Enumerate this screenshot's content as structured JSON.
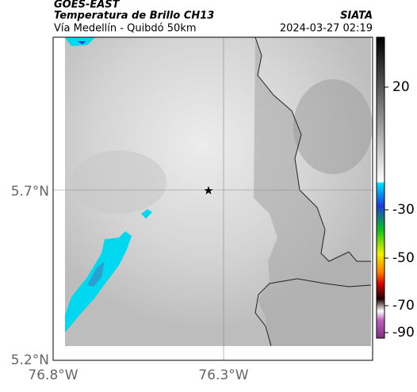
{
  "header": {
    "source": "GOES-EAST",
    "title": "Temperatura de Brillo CH13",
    "subtitle": "Vía Medellín - Quibdó 50km",
    "agency": "SIATA",
    "datetime": "2024-03-27 02:19"
  },
  "map": {
    "lat_labels": [
      "5.7°N",
      "5.2°N"
    ],
    "lon_labels": [
      "76.8°W",
      "76.3°W"
    ]
  },
  "colorbar": {
    "ticks": [
      20,
      -30,
      -50,
      -70,
      -90
    ]
  }
}
